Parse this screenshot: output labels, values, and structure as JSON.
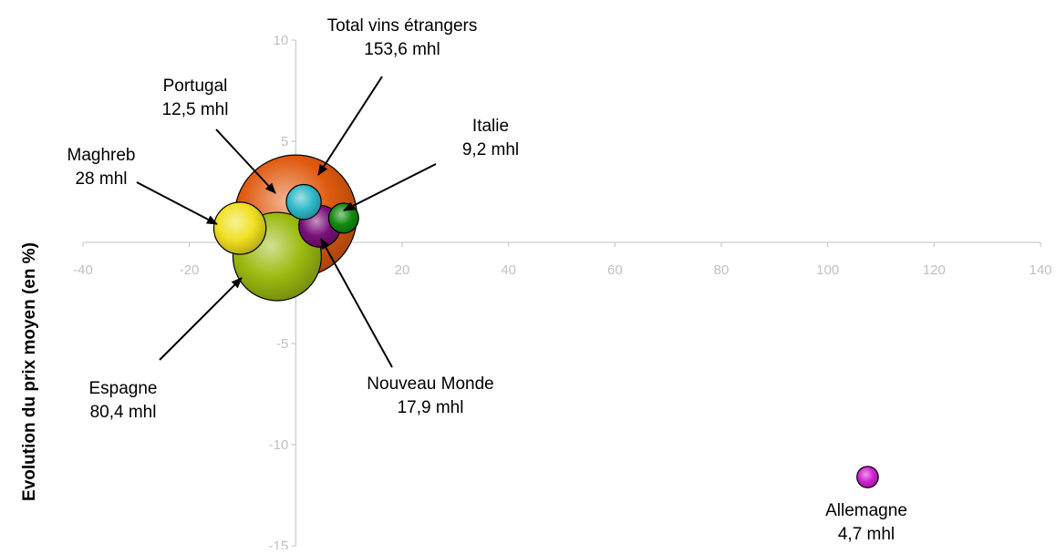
{
  "chart_data": {
    "type": "bubble",
    "title": "",
    "xlabel": "",
    "ylabel": "Evolution du prix moyen (en %)",
    "xlim": [
      -40,
      140
    ],
    "ylim": [
      -15,
      10
    ],
    "x_ticks": [
      -40,
      -20,
      0,
      20,
      40,
      60,
      80,
      100,
      120,
      140
    ],
    "y_ticks": [
      10,
      5,
      -5,
      -10,
      -15
    ],
    "grid": false,
    "legend": "none",
    "series": [
      {
        "name": "Total vins étrangers",
        "label": [
          "Total vins étrangers",
          "153,6 mhl"
        ],
        "x": 0,
        "y": 1.3,
        "volume_mhl": 153.6,
        "color": "#e05a10"
      },
      {
        "name": "Espagne",
        "label": [
          "Espagne",
          "80,4 mhl"
        ],
        "x": -3.5,
        "y": -0.7,
        "volume_mhl": 80.4,
        "color": "#9bbb10"
      },
      {
        "name": "Maghreb",
        "label": [
          "Maghreb",
          "28 mhl"
        ],
        "x": -10.5,
        "y": 0.7,
        "volume_mhl": 28,
        "color": "#f0e020"
      },
      {
        "name": "Nouveau Monde",
        "label": [
          "Nouveau Monde",
          "17,9 mhl"
        ],
        "x": 4.5,
        "y": 0.8,
        "volume_mhl": 17.9,
        "color": "#7a107a"
      },
      {
        "name": "Portugal",
        "label": [
          "Portugal",
          "12,5 mhl"
        ],
        "x": 1.5,
        "y": 2.0,
        "volume_mhl": 12.5,
        "color": "#30b8c8"
      },
      {
        "name": "Italie",
        "label": [
          "Italie",
          "9,2 mhl"
        ],
        "x": 9,
        "y": 1.2,
        "volume_mhl": 9.2,
        "color": "#108a10"
      },
      {
        "name": "Allemagne",
        "label": [
          "Allemagne",
          "4,7 mhl"
        ],
        "x": 107.5,
        "y": -11.6,
        "volume_mhl": 4.7,
        "color": "#d020d0"
      }
    ]
  }
}
